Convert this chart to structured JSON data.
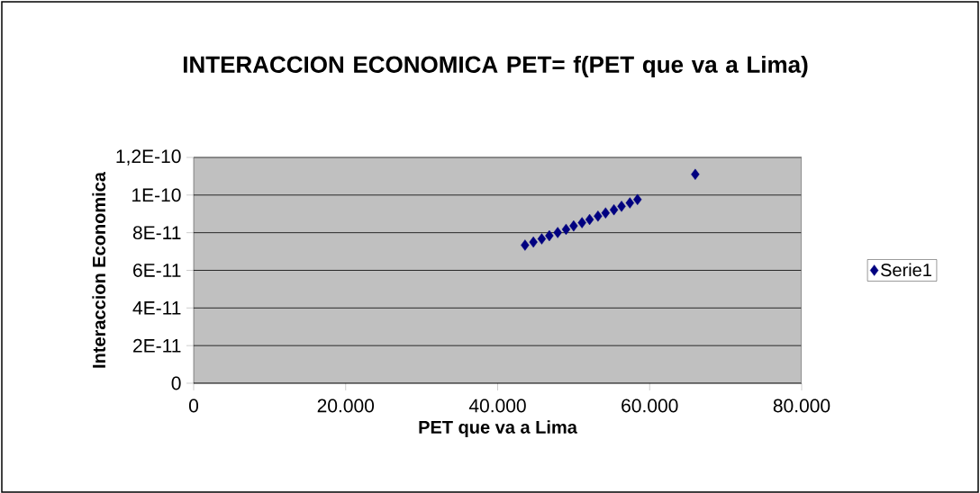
{
  "chart_data": {
    "type": "scatter",
    "title": "INTERACCION ECONOMICA PET= f(PET que va a Lima)",
    "xlabel": "PET que va a Lima",
    "ylabel": "Interaccion Economica",
    "x": [
      43600,
      44700,
      45800,
      46800,
      47900,
      49000,
      50000,
      51100,
      52100,
      53200,
      54200,
      55300,
      56300,
      57400,
      58400,
      66000
    ],
    "series": [
      {
        "name": "Serie1",
        "color": "#000080",
        "values": [
          7.34e-11,
          7.5e-11,
          7.67e-11,
          7.84e-11,
          8.01e-11,
          8.18e-11,
          8.36e-11,
          8.53e-11,
          8.7e-11,
          8.88e-11,
          9.05e-11,
          9.22e-11,
          9.4e-11,
          9.58e-11,
          9.76e-11,
          1.11e-10
        ]
      }
    ],
    "xlim": [
      0,
      80000
    ],
    "ylim": [
      0,
      1.2e-10
    ],
    "xticks": [
      0,
      {
        "value": 20000,
        "label": "20.000"
      },
      {
        "value": 40000,
        "label": "40.000"
      },
      {
        "value": 60000,
        "label": "60.000"
      },
      {
        "value": 80000,
        "label": "80.000"
      }
    ],
    "yticks": [
      0,
      {
        "value": 2e-11,
        "label": "2E-11"
      },
      {
        "value": 4e-11,
        "label": "4E-11"
      },
      {
        "value": 6e-11,
        "label": "6E-11"
      },
      {
        "value": 8e-11,
        "label": "8E-11"
      },
      {
        "value": 1e-10,
        "label": "1E-10"
      },
      {
        "value": 1.2e-10,
        "label": "1,2E-10"
      }
    ],
    "grid": "y",
    "legend": "right",
    "marker": "diamond"
  }
}
